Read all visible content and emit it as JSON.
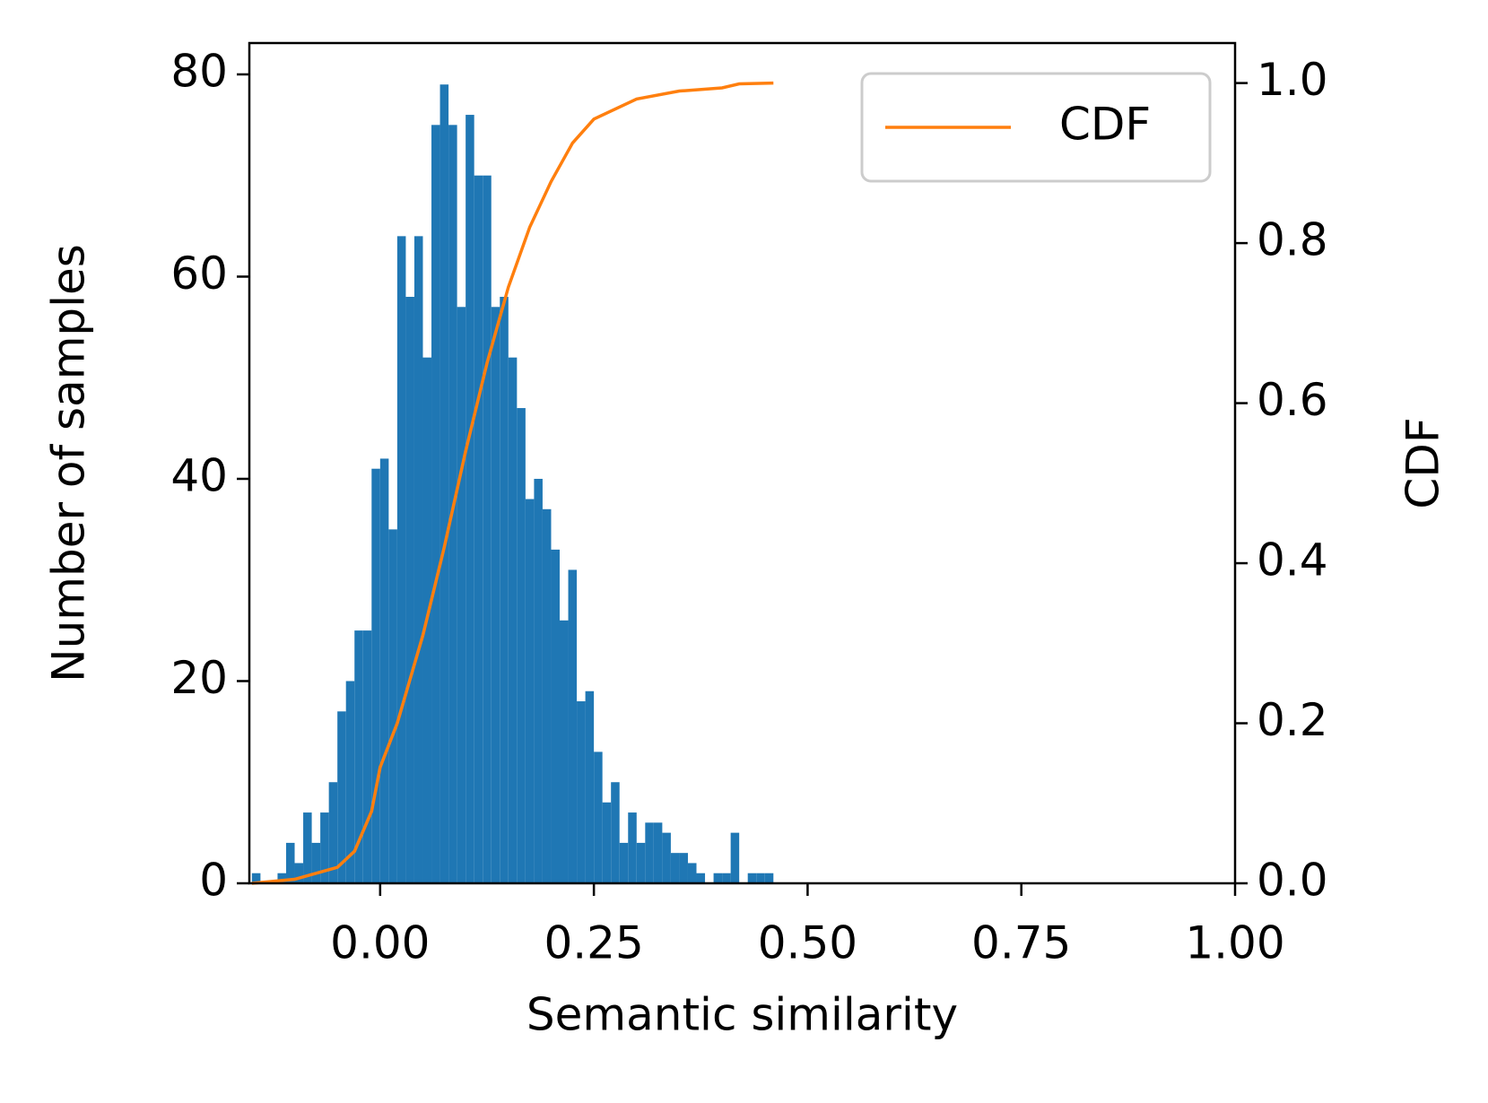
{
  "chart_data": {
    "type": "histogram",
    "xlabel": "Semantic similarity",
    "ylabel": "Number of samples",
    "y2label": "CDF",
    "color": "#1f77b4",
    "bins": [
      -0.15,
      -0.14,
      -0.13,
      -0.12,
      -0.11,
      -0.1,
      -0.09,
      -0.08,
      -0.07,
      -0.06,
      -0.05,
      -0.04,
      -0.03,
      -0.02,
      -0.01,
      0.0,
      0.01,
      0.02,
      0.03,
      0.04,
      0.05,
      0.06,
      0.07,
      0.08,
      0.09,
      0.1,
      0.11,
      0.12,
      0.13,
      0.14,
      0.15,
      0.16,
      0.17,
      0.18,
      0.19,
      0.2,
      0.21,
      0.22,
      0.23,
      0.24,
      0.25,
      0.26,
      0.27,
      0.28,
      0.29,
      0.3,
      0.31,
      0.32,
      0.33,
      0.34,
      0.35,
      0.36,
      0.37,
      0.38,
      0.39,
      0.4,
      0.41,
      0.42,
      0.43,
      0.44,
      0.45,
      0.46
    ],
    "values": [
      1,
      0,
      0,
      1,
      4,
      2,
      7,
      4,
      7,
      10,
      17,
      20,
      25,
      25,
      41,
      42,
      35,
      64,
      58,
      64,
      52,
      75,
      79,
      75,
      57,
      76,
      70,
      70,
      57,
      58,
      52,
      47,
      38,
      40,
      37,
      33,
      26,
      31,
      18,
      19,
      13,
      8,
      10,
      4,
      7,
      4,
      6,
      6,
      5,
      3,
      3,
      2,
      1,
      0,
      1,
      1,
      5,
      0,
      1,
      1,
      1
    ],
    "cdf": {
      "name": "CDF",
      "color": "#ff7f0e",
      "axis": "y2",
      "x": [
        -0.15,
        -0.1,
        -0.05,
        -0.03,
        -0.01,
        0.0,
        0.02,
        0.05,
        0.075,
        0.1,
        0.125,
        0.15,
        0.175,
        0.2,
        0.225,
        0.25,
        0.3,
        0.35,
        0.4,
        0.42,
        0.46
      ],
      "values": [
        0,
        0.005,
        0.02,
        0.04,
        0.09,
        0.145,
        0.2,
        0.31,
        0.42,
        0.54,
        0.65,
        0.745,
        0.82,
        0.877,
        0.925,
        0.955,
        0.98,
        0.99,
        0.994,
        0.999,
        1.0
      ]
    },
    "legend": "upper right",
    "xlim": [
      -0.153,
      1.0
    ],
    "ylim": [
      0,
      83.1
    ],
    "y2lim": [
      0,
      1.05
    ],
    "xticks": [
      {
        "value": 0,
        "label": "0.00"
      },
      {
        "value": 0.25,
        "label": "0.25"
      },
      {
        "value": 0.5,
        "label": "0.50"
      },
      {
        "value": 0.75,
        "label": "0.75"
      },
      {
        "value": 1,
        "label": "1.00"
      }
    ],
    "yticks": [
      0,
      20,
      40,
      60,
      80
    ],
    "y2ticks": [
      {
        "value": 0,
        "label": "0.0"
      },
      0.2,
      0.4,
      0.6,
      0.8,
      {
        "value": 1,
        "label": "1.0"
      }
    ]
  }
}
